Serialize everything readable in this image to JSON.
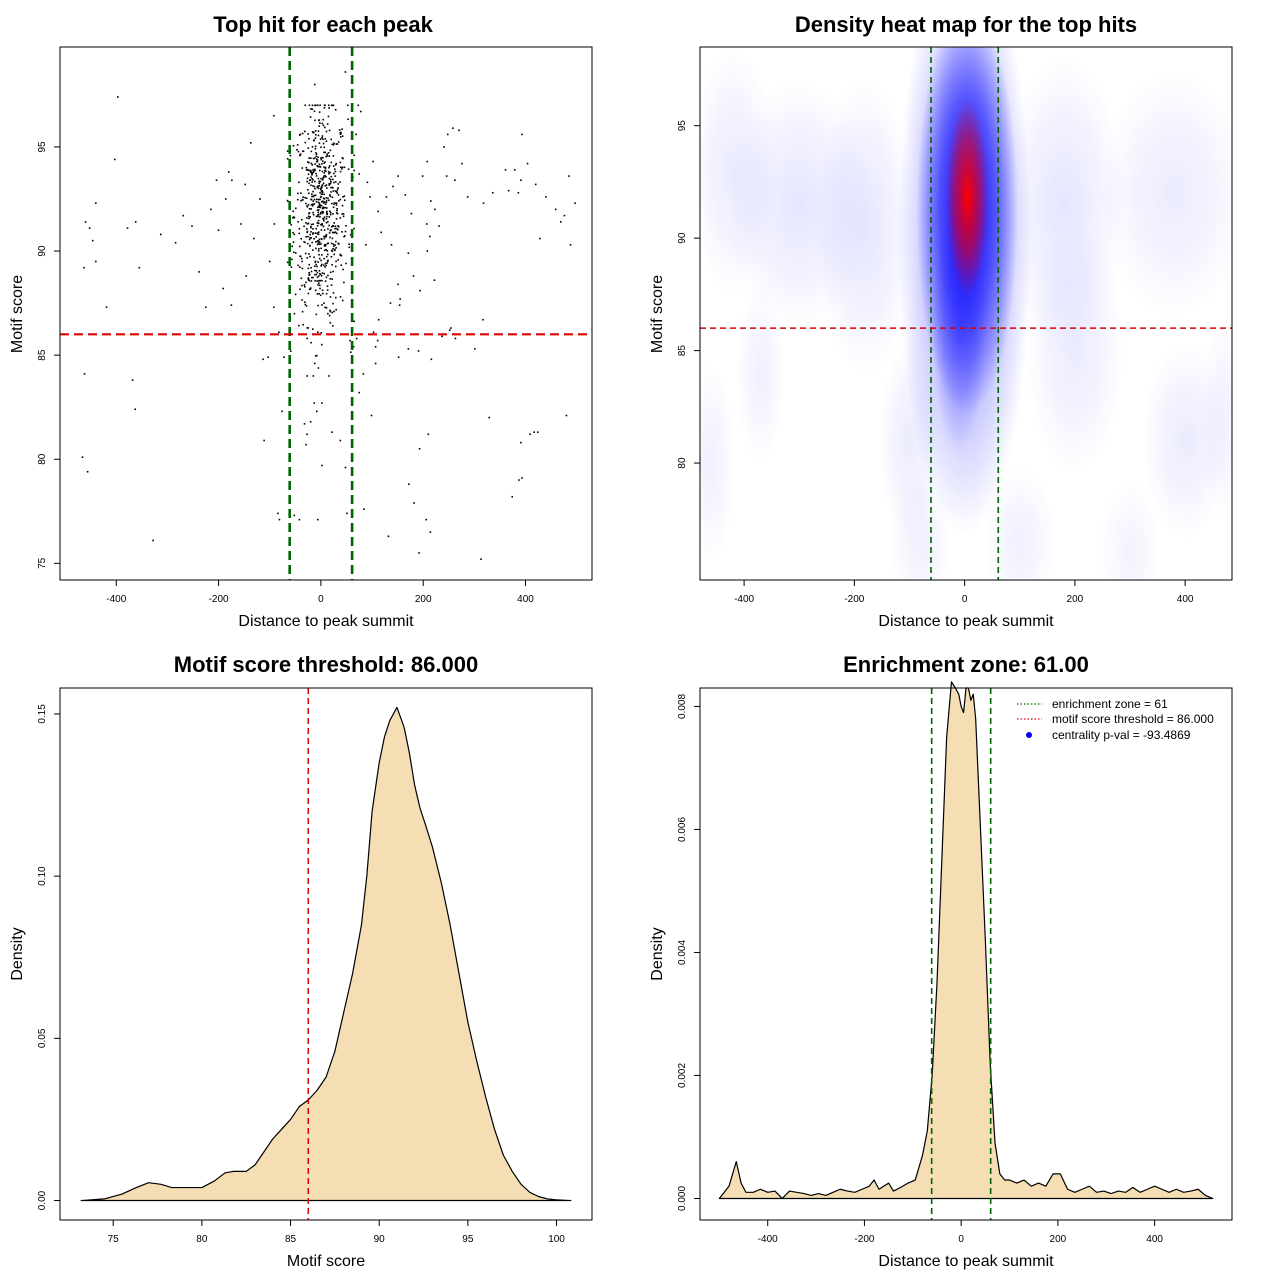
{
  "chart_data": [
    {
      "type": "scatter",
      "title": "Top hit for each peak",
      "xlabel": "Distance to peak summit",
      "ylabel": "Motif score",
      "xlim": [
        -510,
        530
      ],
      "ylim": [
        74.2,
        99.8
      ],
      "xticks": [
        -400,
        -200,
        0,
        200,
        400
      ],
      "yticks": [
        75,
        80,
        85,
        90,
        95
      ],
      "xtick_labels": [
        "-400",
        "-200",
        "0",
        "200",
        "400"
      ],
      "ytick_labels": [
        "75",
        "80",
        "85",
        "90",
        "95"
      ],
      "enrichment_zone": 61,
      "motif_score_threshold": 86.0,
      "zone_color": "#006400",
      "threshold_color": "#dd0000",
      "point_color": "#000000",
      "grid": false,
      "points": [
        [
          -397,
          97.4
        ],
        [
          -403,
          94.4
        ],
        [
          -440,
          92.3
        ],
        [
          -460,
          91.4
        ],
        [
          -452,
          91.1
        ],
        [
          -446,
          90.5
        ],
        [
          -463,
          89.2
        ],
        [
          -440,
          89.5
        ],
        [
          -362,
          91.4
        ],
        [
          -378,
          91.1
        ],
        [
          -313,
          90.8
        ],
        [
          -284,
          90.4
        ],
        [
          -238,
          89.0
        ],
        [
          -191,
          88.2
        ],
        [
          -225,
          87.3
        ],
        [
          -419,
          87.3
        ],
        [
          -355,
          89.2
        ],
        [
          -269,
          91.7
        ],
        [
          -252,
          91.2
        ],
        [
          -215,
          92.0
        ],
        [
          -200,
          91.0
        ],
        [
          -186,
          92.5
        ],
        [
          -174,
          93.4
        ],
        [
          -148,
          93.2
        ],
        [
          -156,
          91.3
        ],
        [
          -131,
          90.6
        ],
        [
          -119,
          92.5
        ],
        [
          -137,
          95.2
        ],
        [
          -204,
          93.4
        ],
        [
          -180,
          93.8
        ],
        [
          -146,
          88.8
        ],
        [
          -175,
          87.4
        ],
        [
          -100,
          89.5
        ],
        [
          -91,
          91.3
        ],
        [
          -92,
          87.3
        ],
        [
          -82,
          86.1
        ],
        [
          -72,
          84.9
        ],
        [
          -113,
          84.8
        ],
        [
          -103,
          84.9
        ],
        [
          -462,
          84.1
        ],
        [
          -368,
          83.8
        ],
        [
          -363,
          82.4
        ],
        [
          -328,
          76.1
        ],
        [
          -76,
          82.3
        ],
        [
          -111,
          80.9
        ],
        [
          -84,
          77.4
        ],
        [
          -81,
          77.1
        ],
        [
          -466,
          80.1
        ],
        [
          -456,
          79.4
        ],
        [
          -52,
          77.3
        ],
        [
          -42,
          77.1
        ],
        [
          -6,
          77.1
        ],
        [
          48,
          79.6
        ],
        [
          51,
          77.4
        ],
        [
          84,
          77.6
        ],
        [
          -92,
          96.5
        ],
        [
          -12,
          98.0
        ],
        [
          48,
          98.6
        ],
        [
          73,
          97.0
        ],
        [
          78,
          96.7
        ],
        [
          69,
          95.6
        ],
        [
          65,
          94.6
        ],
        [
          75,
          93.7
        ],
        [
          91,
          93.3
        ],
        [
          102,
          94.3
        ],
        [
          96,
          92.6
        ],
        [
          112,
          91.9
        ],
        [
          128,
          92.6
        ],
        [
          141,
          93.1
        ],
        [
          151,
          93.6
        ],
        [
          165,
          92.7
        ],
        [
          177,
          91.8
        ],
        [
          171,
          89.9
        ],
        [
          138,
          90.3
        ],
        [
          151,
          88.4
        ],
        [
          136,
          87.5
        ],
        [
          155,
          87.7
        ],
        [
          118,
          90.9
        ],
        [
          88,
          90.3
        ],
        [
          103,
          86.1
        ],
        [
          113,
          86.7
        ],
        [
          111,
          85.7
        ],
        [
          70,
          85.8
        ],
        [
          57,
          85.7
        ],
        [
          64,
          85.4
        ],
        [
          83,
          84.1
        ],
        [
          107,
          84.6
        ],
        [
          75,
          83.2
        ],
        [
          99,
          82.1
        ],
        [
          107,
          85.4
        ],
        [
          171,
          85.3
        ],
        [
          199,
          93.6
        ],
        [
          208,
          94.3
        ],
        [
          215,
          92.4
        ],
        [
          223,
          92.0
        ],
        [
          231,
          91.2
        ],
        [
          246,
          93.6
        ],
        [
          241,
          95.0
        ],
        [
          248,
          95.6
        ],
        [
          258,
          95.9
        ],
        [
          270,
          95.8
        ],
        [
          276,
          94.2
        ],
        [
          262,
          93.4
        ],
        [
          287,
          92.6
        ],
        [
          318,
          92.3
        ],
        [
          336,
          92.8
        ],
        [
          361,
          93.9
        ],
        [
          379,
          93.9
        ],
        [
          391,
          93.4
        ],
        [
          404,
          94.2
        ],
        [
          386,
          92.8
        ],
        [
          367,
          92.9
        ],
        [
          420,
          93.2
        ],
        [
          440,
          92.6
        ],
        [
          459,
          92.0
        ],
        [
          469,
          91.4
        ],
        [
          476,
          91.7
        ],
        [
          485,
          93.6
        ],
        [
          497,
          92.3
        ],
        [
          488,
          90.3
        ],
        [
          428,
          90.6
        ],
        [
          393,
          95.6
        ],
        [
          207,
          91.3
        ],
        [
          213,
          90.7
        ],
        [
          208,
          90.0
        ],
        [
          222,
          88.6
        ],
        [
          194,
          88.1
        ],
        [
          181,
          88.8
        ],
        [
          154,
          87.4
        ],
        [
          152,
          84.9
        ],
        [
          191,
          85.2
        ],
        [
          216,
          84.8
        ],
        [
          254,
          86.3
        ],
        [
          263,
          85.8
        ],
        [
          301,
          85.3
        ],
        [
          317,
          86.7
        ],
        [
          252,
          86.2
        ],
        [
          237,
          85.9
        ],
        [
          210,
          81.2
        ],
        [
          193,
          80.5
        ],
        [
          172,
          78.8
        ],
        [
          182,
          77.9
        ],
        [
          206,
          77.1
        ],
        [
          214,
          76.5
        ],
        [
          132,
          76.3
        ],
        [
          192,
          75.5
        ],
        [
          313,
          75.2
        ],
        [
          329,
          82.0
        ],
        [
          374,
          78.2
        ],
        [
          387,
          79.0
        ],
        [
          391,
          80.8
        ],
        [
          393,
          79.1
        ],
        [
          409,
          81.2
        ],
        [
          417,
          81.3
        ],
        [
          424,
          81.3
        ],
        [
          480,
          82.1
        ],
        [
          38,
          80.9
        ],
        [
          22,
          81.3
        ],
        [
          2,
          79.7
        ],
        [
          -27,
          81.2
        ],
        [
          -32,
          81.7
        ],
        [
          -20,
          81.8
        ],
        [
          -13,
          82.7
        ],
        [
          -8,
          82.3
        ],
        [
          2,
          82.7
        ],
        [
          -29,
          80.7
        ],
        [
          -12,
          84.6
        ],
        [
          16,
          84.0
        ],
        [
          -19,
          85.6
        ],
        [
          -6,
          86.1
        ],
        [
          17,
          86.9
        ]
      ],
      "cluster": {
        "x_center": 0,
        "x_sd": 26,
        "y_center": 91.8,
        "y_sd": 2.6,
        "count": 700
      }
    },
    {
      "type": "heatmap",
      "title": "Density heat map for the top hits",
      "xlabel": "Distance to peak summit",
      "ylabel": "Motif score",
      "xlim": [
        -480,
        485
      ],
      "ylim": [
        74.8,
        98.5
      ],
      "xticks": [
        -400,
        -200,
        0,
        200,
        400
      ],
      "yticks": [
        80,
        85,
        90,
        95
      ],
      "xtick_labels": [
        "-400",
        "-200",
        "0",
        "200",
        "400"
      ],
      "ytick_labels": [
        "80",
        "85",
        "90",
        "95"
      ],
      "enrichment_zone": 61,
      "motif_score_threshold": 86.0,
      "zone_color": "#006400",
      "threshold_color": "#dd0000",
      "colors": [
        "#ffffff",
        "#d8d8ff",
        "#0000ff",
        "#ff0000"
      ],
      "blobs": [
        {
          "x": 5,
          "y": 91.8,
          "sx": 18,
          "sy": 2.0,
          "color": "#ff0000",
          "a": 1.0
        },
        {
          "x": 5,
          "y": 91.2,
          "sx": 42,
          "sy": 4.1,
          "color": "#0000ff",
          "a": 1.0
        },
        {
          "x": 0,
          "y": 90.0,
          "sx": 55,
          "sy": 6.0,
          "color": "#3333ff",
          "a": 0.55
        },
        {
          "x": -10,
          "y": 86.0,
          "sx": 22,
          "sy": 2.5,
          "color": "#4444ff",
          "a": 0.45
        },
        {
          "x": -300,
          "y": 91.5,
          "sx": 60,
          "sy": 2.5,
          "color": "#9999ff",
          "a": 0.25
        },
        {
          "x": -420,
          "y": 93.0,
          "sx": 35,
          "sy": 2.5,
          "color": "#9999ff",
          "a": 0.2
        },
        {
          "x": -180,
          "y": 90.5,
          "sx": 40,
          "sy": 3.0,
          "color": "#9999ff",
          "a": 0.25
        },
        {
          "x": 180,
          "y": 91.5,
          "sx": 50,
          "sy": 3.0,
          "color": "#9999ff",
          "a": 0.25
        },
        {
          "x": 380,
          "y": 92.0,
          "sx": 60,
          "sy": 2.5,
          "color": "#9999ff",
          "a": 0.2
        },
        {
          "x": 200,
          "y": 85.0,
          "sx": 40,
          "sy": 2.5,
          "color": "#9999ff",
          "a": 0.2
        },
        {
          "x": 400,
          "y": 81.0,
          "sx": 35,
          "sy": 2.0,
          "color": "#9999ff",
          "a": 0.2
        },
        {
          "x": -100,
          "y": 81.0,
          "sx": 25,
          "sy": 2.0,
          "color": "#9999ff",
          "a": 0.2
        },
        {
          "x": -80,
          "y": 76.5,
          "sx": 25,
          "sy": 1.5,
          "color": "#9999ff",
          "a": 0.15
        },
        {
          "x": 100,
          "y": 76.5,
          "sx": 30,
          "sy": 1.5,
          "color": "#9999ff",
          "a": 0.15
        },
        {
          "x": -460,
          "y": 80.0,
          "sx": 20,
          "sy": 2.0,
          "color": "#9999ff",
          "a": 0.15
        },
        {
          "x": -370,
          "y": 84.0,
          "sx": 20,
          "sy": 1.8,
          "color": "#9999ff",
          "a": 0.15
        },
        {
          "x": 470,
          "y": 82.0,
          "sx": 20,
          "sy": 2.0,
          "color": "#9999ff",
          "a": 0.15
        },
        {
          "x": 300,
          "y": 76.0,
          "sx": 25,
          "sy": 1.5,
          "color": "#9999ff",
          "a": 0.12
        }
      ]
    },
    {
      "type": "area",
      "title": "Motif score threshold: 86.000",
      "xlabel": "Motif score",
      "ylabel": "Density",
      "xlim": [
        72,
        102
      ],
      "ylim": [
        -0.006,
        0.158
      ],
      "xticks": [
        75,
        80,
        85,
        90,
        95,
        100
      ],
      "yticks": [
        0,
        0.05,
        0.1,
        0.15
      ],
      "xtick_labels": [
        "75",
        "80",
        "85",
        "90",
        "95",
        "100"
      ],
      "ytick_labels": [
        "0.00",
        "0.05",
        "0.10",
        "0.15"
      ],
      "fill_color": "#f5deb3",
      "threshold": 86.0,
      "threshold_color": "#dd0000",
      "x": [
        73.2,
        74.5,
        75.5,
        76.3,
        77.0,
        77.7,
        78.3,
        79.0,
        80.0,
        80.7,
        81.3,
        81.8,
        82.5,
        83.0,
        83.5,
        84.0,
        84.5,
        85.0,
        85.5,
        86.0,
        86.5,
        87.0,
        87.5,
        88.0,
        88.5,
        89.0,
        89.3,
        89.6,
        90.0,
        90.3,
        90.6,
        91.0,
        91.4,
        91.7,
        92.0,
        92.3,
        92.6,
        93.0,
        93.5,
        94.0,
        94.5,
        95.0,
        95.5,
        96.0,
        96.5,
        97.0,
        97.5,
        98.0,
        98.5,
        99.0,
        99.5,
        100.0,
        100.8
      ],
      "y": [
        0.0,
        0.0005,
        0.002,
        0.004,
        0.0055,
        0.005,
        0.004,
        0.004,
        0.004,
        0.006,
        0.0085,
        0.009,
        0.009,
        0.011,
        0.015,
        0.019,
        0.022,
        0.025,
        0.029,
        0.031,
        0.034,
        0.038,
        0.046,
        0.058,
        0.07,
        0.085,
        0.1,
        0.12,
        0.135,
        0.143,
        0.148,
        0.152,
        0.146,
        0.138,
        0.128,
        0.121,
        0.116,
        0.109,
        0.098,
        0.085,
        0.07,
        0.055,
        0.043,
        0.032,
        0.022,
        0.014,
        0.009,
        0.005,
        0.0025,
        0.0012,
        0.0005,
        0.0002,
        0.0
      ]
    },
    {
      "type": "area",
      "title": "Enrichment zone: 61.00",
      "xlabel": "Distance to peak summit",
      "ylabel": "Density",
      "xlim": [
        -540,
        560
      ],
      "ylim": [
        -0.00035,
        0.0083
      ],
      "xticks": [
        -400,
        -200,
        0,
        200,
        400
      ],
      "yticks": [
        0,
        0.002,
        0.004,
        0.006,
        0.008
      ],
      "xtick_labels": [
        "-400",
        "-200",
        "0",
        "200",
        "400"
      ],
      "ytick_labels": [
        "0.000",
        "0.002",
        "0.004",
        "0.006",
        "0.008"
      ],
      "fill_color": "#f5deb3",
      "enrichment_zone": 61,
      "zone_color": "#006400",
      "threshold_color": "#dd0000",
      "x": [
        -500,
        -480,
        -465,
        -455,
        -445,
        -430,
        -415,
        -400,
        -385,
        -370,
        -355,
        -340,
        -325,
        -310,
        -295,
        -280,
        -265,
        -250,
        -235,
        -220,
        -205,
        -190,
        -180,
        -170,
        -160,
        -150,
        -140,
        -125,
        -110,
        -95,
        -80,
        -70,
        -60,
        -50,
        -40,
        -30,
        -20,
        -12,
        -5,
        0,
        5,
        10,
        15,
        20,
        25,
        30,
        40,
        50,
        60,
        70,
        80,
        90,
        100,
        115,
        130,
        145,
        160,
        175,
        190,
        205,
        220,
        235,
        250,
        265,
        280,
        295,
        310,
        325,
        340,
        355,
        370,
        385,
        400,
        415,
        430,
        445,
        460,
        475,
        490,
        505,
        520
      ],
      "y": [
        0.0,
        0.0002,
        0.0006,
        0.00025,
        0.0001,
        0.0001,
        0.00015,
        0.0001,
        0.00012,
        0.0,
        0.00012,
        0.0001,
        8e-05,
        5e-05,
        8e-05,
        5e-05,
        0.0001,
        0.00015,
        0.00012,
        0.0001,
        0.00015,
        0.0002,
        0.0003,
        0.00015,
        0.0002,
        0.00025,
        0.00012,
        0.00018,
        0.00025,
        0.0003,
        0.0007,
        0.0011,
        0.002,
        0.0035,
        0.0055,
        0.0075,
        0.0084,
        0.0083,
        0.0082,
        0.008,
        0.0079,
        0.0083,
        0.0083,
        0.0081,
        0.0082,
        0.0078,
        0.006,
        0.0042,
        0.0022,
        0.0009,
        0.0004,
        0.0003,
        0.0003,
        0.00025,
        0.0003,
        0.0002,
        0.00025,
        0.0002,
        0.0004,
        0.0004,
        0.00015,
        0.0001,
        0.00015,
        0.0002,
        0.0001,
        0.00012,
        8e-05,
        0.00012,
        0.0001,
        0.00018,
        0.0001,
        0.00015,
        0.0002,
        0.00015,
        0.0001,
        0.00015,
        0.0001,
        0.00012,
        0.00015,
        5e-05,
        0.0
      ],
      "legend": {
        "position": "top-right",
        "items": [
          {
            "label": "enrichment zone = 61",
            "color": "#006400",
            "style": "dotted-line"
          },
          {
            "label": "motif score threshold = 86.000",
            "color": "#dd0000",
            "style": "dotted-line"
          },
          {
            "label": "centrality p-val = -93.4869",
            "color": "#0000ff",
            "style": "point"
          }
        ]
      }
    }
  ]
}
